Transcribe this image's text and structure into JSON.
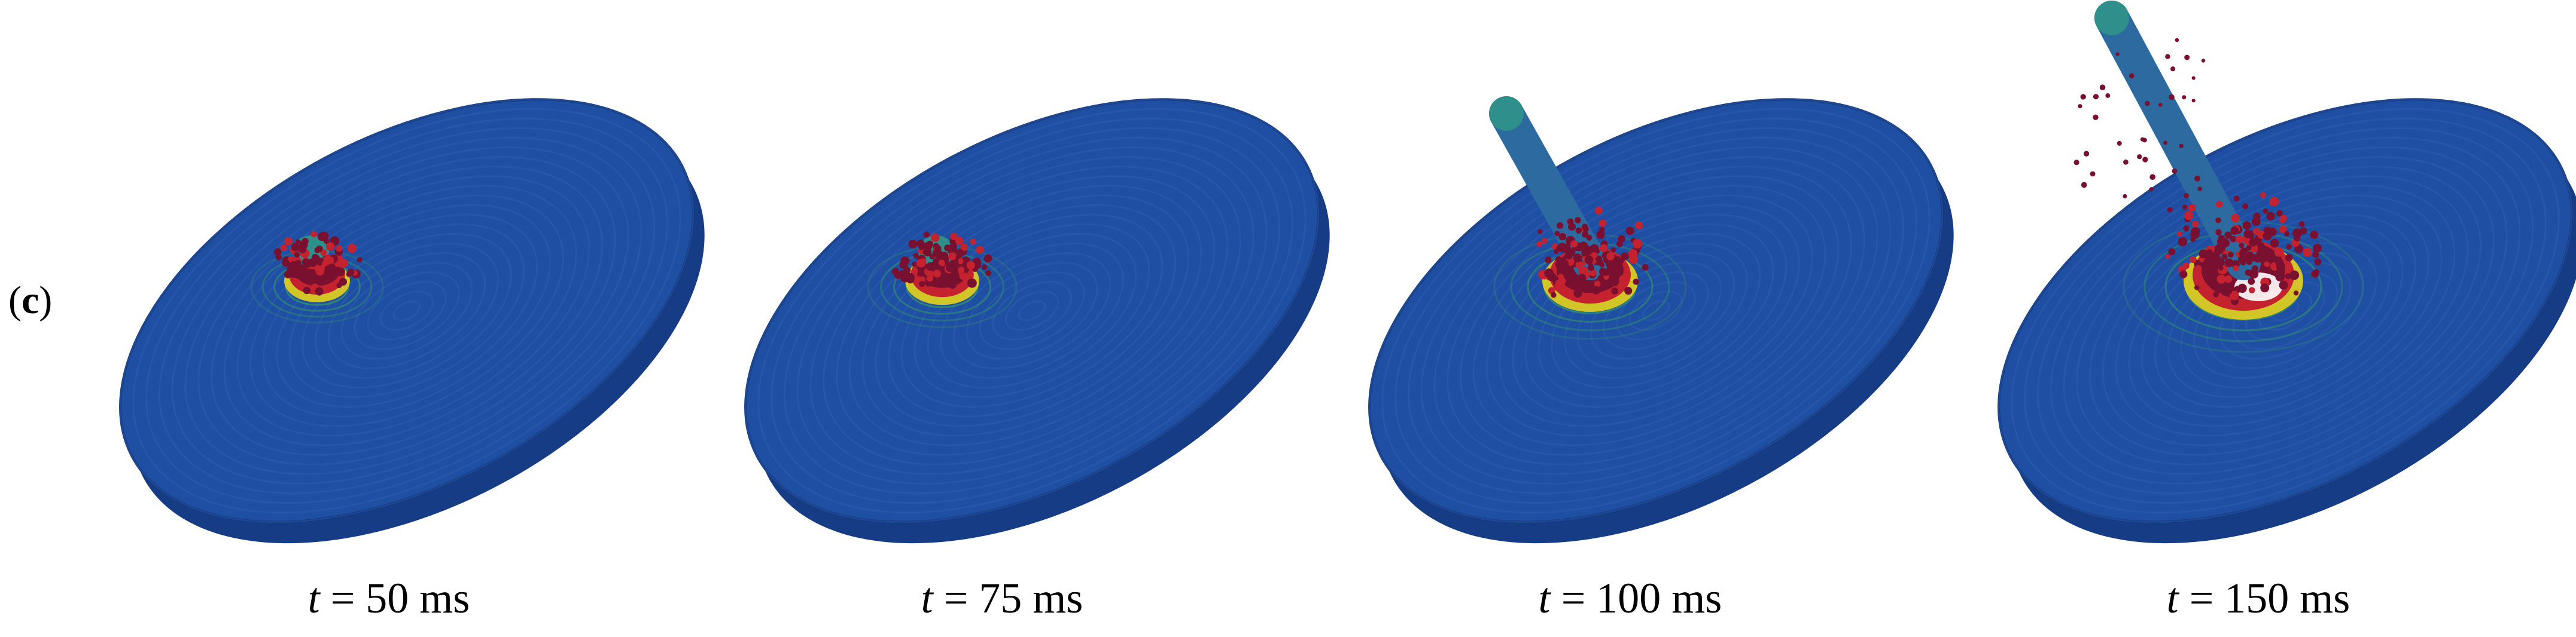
{
  "panel_label": {
    "open": "(",
    "letter": "c",
    "close": ")"
  },
  "colors": {
    "disk_top": "#1f4fa3",
    "disk_side": "#173c86",
    "disk_edge": "#12306e",
    "ring_line": "#2a5cb3",
    "damage_dark": "#7a1030",
    "damage_mid": "#c5222f",
    "damage_yellow": "#e6d21a",
    "damage_green": "#3aa55a",
    "rod": "#2c6aa0",
    "rod_tip": "#2f8f8a",
    "void": "#ffffff"
  },
  "frames": [
    {
      "id": "t50",
      "var": "t",
      "op": " = ",
      "value": "50",
      "unit": " ms",
      "rod_extension": 0.0,
      "crater_size": 0.55
    },
    {
      "id": "t75",
      "var": "t",
      "op": " = ",
      "value": "75",
      "unit": " ms",
      "rod_extension": 0.0,
      "crater_size": 0.62
    },
    {
      "id": "t100",
      "var": "t",
      "op": " = ",
      "value": "100",
      "unit": " ms",
      "rod_extension": 0.5,
      "crater_size": 0.8
    },
    {
      "id": "t150",
      "var": "t",
      "op": " = ",
      "value": "150",
      "unit": " ms",
      "rod_extension": 1.0,
      "crater_size": 1.0
    }
  ]
}
